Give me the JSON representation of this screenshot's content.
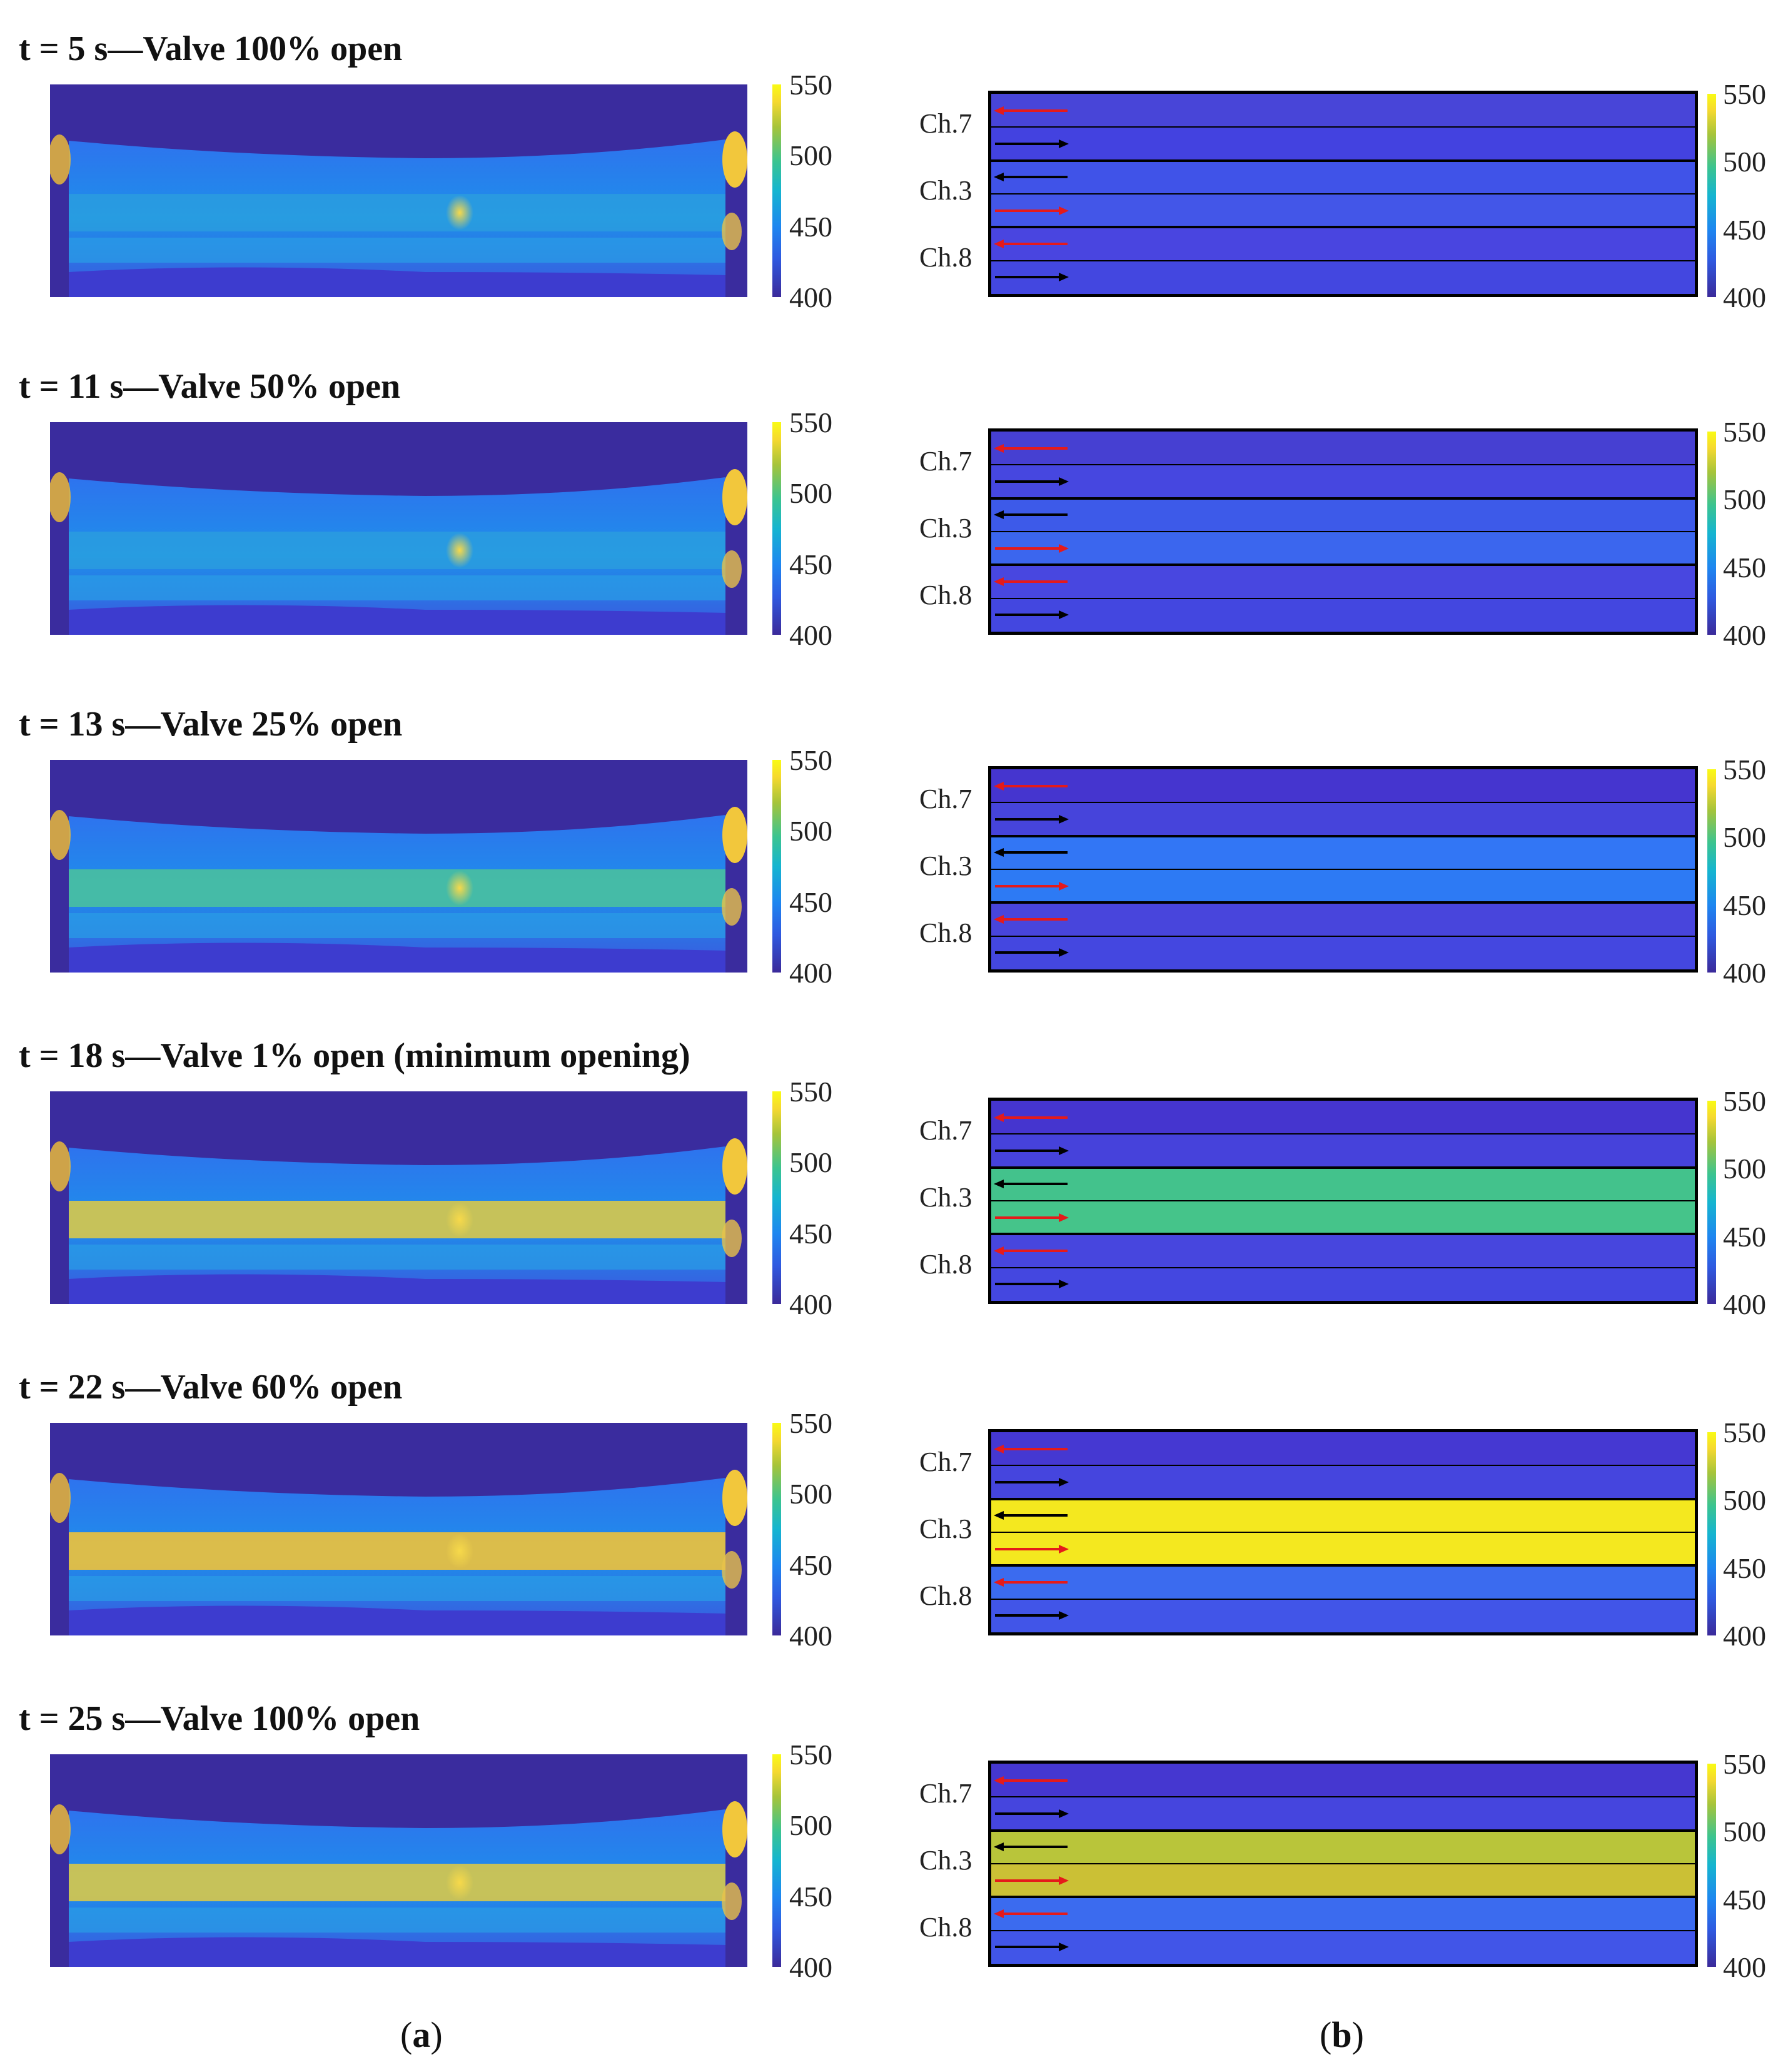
{
  "rows": [
    {
      "title": "t = 5 s—Valve 100% open",
      "channels": [
        "#4845d8",
        "#4342e0",
        "#4053e8",
        "#4356e8",
        "#4945e0",
        "#4347e0"
      ],
      "hot_band": "none"
    },
    {
      "title": "t = 11 s—Valve 50% open",
      "channels": [
        "#4640d2",
        "#4647e0",
        "#3d5ae9",
        "#3b66ee",
        "#4847e0",
        "#4347e0"
      ],
      "hot_band": "none"
    },
    {
      "title": "t = 13 s—Valve 25% open",
      "channels": [
        "#4535cf",
        "#4644db",
        "#3276f5",
        "#2d7af4",
        "#4845dc",
        "#4447e0"
      ],
      "hot_band": "mild"
    },
    {
      "title": "t = 18 s—Valve 1% open (minimum opening)",
      "channels": [
        "#4535cf",
        "#4642db",
        "#43c28c",
        "#45c48a",
        "#4746de",
        "#4447e0"
      ],
      "hot_band": "warm"
    },
    {
      "title": "t = 22 s—Valve 60% open",
      "channels": [
        "#4538d2",
        "#4545de",
        "#f4e81f",
        "#f4e81f",
        "#3b6bef",
        "#4155e8"
      ],
      "hot_band": "hot"
    },
    {
      "title": "t = 25 s—Valve 100% open",
      "channels": [
        "#4537d0",
        "#4545de",
        "#b9c53a",
        "#cbc035",
        "#3b6bef",
        "#4155e8"
      ],
      "hot_band": "warm"
    }
  ],
  "colorbar": {
    "ticks": [
      "550",
      "500",
      "450",
      "400"
    ]
  },
  "channel_labels": [
    "Ch.7",
    "Ch.3",
    "Ch.8"
  ],
  "arrows": [
    {
      "direction": "left",
      "color": "#e51a1a"
    },
    {
      "direction": "right",
      "color": "#000000"
    },
    {
      "direction": "left",
      "color": "#000000"
    },
    {
      "direction": "right",
      "color": "#e51a1a"
    },
    {
      "direction": "left",
      "color": "#e51a1a"
    },
    {
      "direction": "right",
      "color": "#000000"
    }
  ],
  "panel_labels": {
    "a": "(a)",
    "b": "(b)"
  },
  "colors": {
    "background": "#3a2c9e",
    "cold": "#4343dd",
    "hot": "#f9d93a"
  }
}
